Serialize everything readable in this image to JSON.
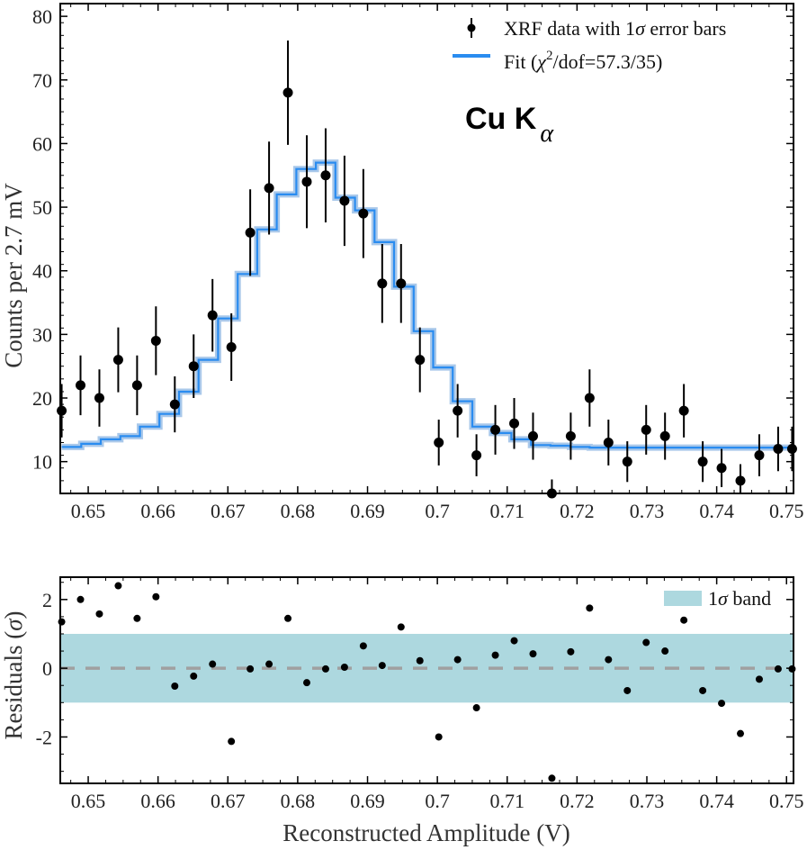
{
  "chart_data": [
    {
      "type": "scatter",
      "panel": "main",
      "ylabel": "Counts per 2.7 mV",
      "xlim": [
        0.646,
        0.751
      ],
      "ylim": [
        5,
        82
      ],
      "xticks": [
        0.65,
        0.66,
        0.67,
        0.68,
        0.69,
        0.7,
        0.71,
        0.72,
        0.73,
        0.74,
        0.75
      ],
      "xtick_labels": [
        "0.65",
        "0.66",
        "0.67",
        "0.68",
        "0.69",
        "0.7",
        "0.71",
        "0.72",
        "0.73",
        "0.74",
        "0.75"
      ],
      "yticks": [
        10,
        20,
        30,
        40,
        50,
        60,
        70,
        80
      ],
      "ytick_labels": [
        "10",
        "20",
        "30",
        "40",
        "50",
        "60",
        "70",
        "80"
      ],
      "annotation": {
        "main": "Cu K",
        "subscript": "α"
      },
      "legend": {
        "placement": "top-right",
        "entries": [
          {
            "prefix": "XRF data with 1",
            "sigma": "σ",
            "suffix": " error bars"
          },
          {
            "prefix": "Fit (",
            "chi": "χ",
            "sup": "2",
            "suffix": "/dof=57.3/35)"
          }
        ]
      },
      "series": [
        {
          "name": "XRF data",
          "x": [
            0.6462,
            0.6489,
            0.6516,
            0.6543,
            0.657,
            0.6597,
            0.6624,
            0.6651,
            0.6678,
            0.6705,
            0.6732,
            0.6759,
            0.6786,
            0.6813,
            0.684,
            0.6867,
            0.6894,
            0.6921,
            0.6948,
            0.6975,
            0.7002,
            0.7029,
            0.7056,
            0.7083,
            0.711,
            0.7137,
            0.7164,
            0.7191,
            0.7218,
            0.7245,
            0.7272,
            0.7299,
            0.7326,
            0.7353,
            0.738,
            0.7407,
            0.7434,
            0.7461,
            0.7488,
            0.7508
          ],
          "y": [
            18,
            22,
            20,
            26,
            22,
            29,
            19,
            25,
            33,
            28,
            46,
            53,
            68,
            54,
            55,
            51,
            49,
            38,
            38,
            26,
            13,
            18,
            11,
            15,
            16,
            14,
            5,
            14,
            20,
            13,
            10,
            15,
            14,
            18,
            10,
            9,
            7,
            11,
            12,
            12
          ],
          "yerr": [
            4.2,
            4.7,
            4.5,
            5.1,
            4.7,
            5.4,
            4.4,
            5.0,
            5.7,
            5.3,
            6.8,
            7.3,
            8.2,
            7.3,
            7.4,
            7.1,
            7.0,
            6.2,
            6.2,
            5.1,
            3.6,
            4.2,
            3.3,
            3.9,
            4.0,
            3.7,
            2.2,
            3.7,
            4.5,
            3.6,
            3.2,
            3.9,
            3.7,
            4.2,
            3.2,
            3.0,
            2.6,
            3.3,
            3.5,
            3.5
          ]
        },
        {
          "name": "Fit",
          "type": "step",
          "x_edges": [
            0.6462,
            0.649,
            0.6518,
            0.6546,
            0.6574,
            0.6602,
            0.663,
            0.6658,
            0.6686,
            0.6714,
            0.6742,
            0.677,
            0.6798,
            0.6826,
            0.6854,
            0.6882,
            0.691,
            0.6938,
            0.6966,
            0.6994,
            0.7022,
            0.705,
            0.7078,
            0.7106,
            0.7134,
            0.7162,
            0.719,
            0.7218,
            0.7246,
            0.7274,
            0.7302,
            0.733,
            0.7358,
            0.7386,
            0.7414,
            0.7442,
            0.747,
            0.7498
          ],
          "y": [
            12.3,
            12.8,
            13.5,
            14.0,
            15.5,
            17.5,
            21.0,
            26.0,
            32.5,
            39.5,
            46.5,
            52.0,
            56.0,
            57.0,
            51.5,
            49.5,
            44.5,
            37.5,
            30.5,
            24.8,
            19.5,
            15.5,
            14.5,
            13.5,
            12.6,
            12.5,
            12.3,
            12.2,
            12.2,
            12.2,
            12.2,
            12.2,
            12.2,
            12.2,
            12.2,
            12.2,
            12.2
          ]
        }
      ]
    },
    {
      "type": "scatter",
      "panel": "residuals",
      "xlabel": "Reconstructed Amplitude (V)",
      "ylabel": {
        "prefix": "Residuals (",
        "sigma": "σ",
        "suffix": ")"
      },
      "xlim": [
        0.646,
        0.751
      ],
      "ylim": [
        -3.35,
        2.65
      ],
      "xticks": [
        0.65,
        0.66,
        0.67,
        0.68,
        0.69,
        0.7,
        0.71,
        0.72,
        0.73,
        0.74,
        0.75
      ],
      "xtick_labels": [
        "0.65",
        "0.66",
        "0.67",
        "0.68",
        "0.69",
        "0.7",
        "0.71",
        "0.72",
        "0.73",
        "0.74",
        "0.75"
      ],
      "yticks": [
        -2,
        0,
        2
      ],
      "ytick_labels": [
        "-2",
        "0",
        "2"
      ],
      "band": [
        -1,
        1
      ],
      "legend": {
        "placement": "top-right",
        "entries": [
          {
            "prefix": "1",
            "sigma": "σ",
            "suffix": " band"
          }
        ]
      },
      "colors": {
        "band": "#add8df",
        "zero_line": "#a0a0a0"
      },
      "series": [
        {
          "name": "Residuals",
          "x": [
            0.6462,
            0.6489,
            0.6516,
            0.6543,
            0.657,
            0.6597,
            0.6624,
            0.6651,
            0.6678,
            0.6705,
            0.6732,
            0.6759,
            0.6786,
            0.6813,
            0.684,
            0.6867,
            0.6894,
            0.6921,
            0.6948,
            0.6975,
            0.7002,
            0.7029,
            0.7056,
            0.7083,
            0.711,
            0.7137,
            0.7164,
            0.7191,
            0.7218,
            0.7245,
            0.7272,
            0.7299,
            0.7326,
            0.7353,
            0.738,
            0.7407,
            0.7434,
            0.7461,
            0.7488,
            0.7508
          ],
          "y": [
            1.35,
            2.0,
            1.58,
            2.4,
            1.45,
            2.08,
            -0.52,
            -0.23,
            0.12,
            -2.13,
            -0.02,
            0.12,
            1.45,
            -0.42,
            -0.02,
            0.03,
            0.65,
            0.08,
            1.2,
            0.22,
            -2.0,
            0.25,
            -1.15,
            0.38,
            0.8,
            0.42,
            -3.2,
            0.48,
            1.75,
            0.25,
            -0.65,
            0.75,
            0.5,
            1.4,
            -0.65,
            -1.02,
            -1.9,
            -0.32,
            -0.02,
            -0.02
          ]
        }
      ]
    }
  ],
  "colors": {
    "fit_line": "#2a8cf0",
    "fit_band": "#a9c8ea",
    "points": "#000000",
    "axis": "#000000"
  }
}
